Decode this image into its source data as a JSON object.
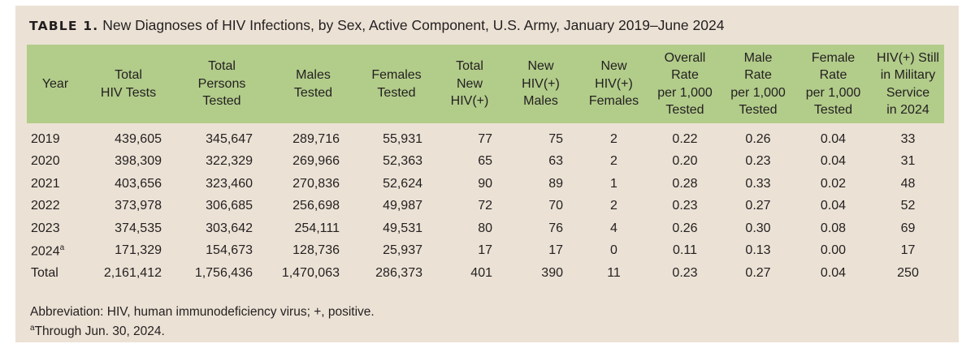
{
  "title": {
    "label": "TABLE 1.",
    "text": "New Diagnoses of HIV Infections, by Sex, Active Component, U.S. Army, January 2019–June 2024"
  },
  "columns": [
    [
      "Year"
    ],
    [
      "Total",
      "HIV Tests"
    ],
    [
      "Total",
      "Persons",
      "Tested"
    ],
    [
      "Males",
      "Tested"
    ],
    [
      "Females",
      "Tested"
    ],
    [
      "Total",
      "New",
      "HIV(+)"
    ],
    [
      "New",
      "HIV(+)",
      "Males"
    ],
    [
      "New",
      "HIV(+)",
      "Females"
    ],
    [
      "Overall",
      "Rate",
      "per 1,000",
      "Tested"
    ],
    [
      "Male",
      "Rate",
      "per 1,000",
      "Tested"
    ],
    [
      "Female",
      "Rate",
      "per 1,000",
      "Tested"
    ],
    [
      "HIV(+) Still",
      "in Military",
      "Service",
      "in 2024"
    ]
  ],
  "rows": [
    {
      "year": "2019",
      "sup": "",
      "cells": [
        "439,605",
        "345,647",
        "289,716",
        "55,931",
        "77",
        "75",
        "2",
        "0.22",
        "0.26",
        "0.04",
        "33"
      ]
    },
    {
      "year": "2020",
      "sup": "",
      "cells": [
        "398,309",
        "322,329",
        "269,966",
        "52,363",
        "65",
        "63",
        "2",
        "0.20",
        "0.23",
        "0.04",
        "31"
      ]
    },
    {
      "year": "2021",
      "sup": "",
      "cells": [
        "403,656",
        "323,460",
        "270,836",
        "52,624",
        "90",
        "89",
        "1",
        "0.28",
        "0.33",
        "0.02",
        "48"
      ]
    },
    {
      "year": "2022",
      "sup": "",
      "cells": [
        "373,978",
        "306,685",
        "256,698",
        "49,987",
        "72",
        "70",
        "2",
        "0.23",
        "0.27",
        "0.04",
        "52"
      ]
    },
    {
      "year": "2023",
      "sup": "",
      "cells": [
        "374,535",
        "303,642",
        "254,111",
        "49,531",
        "80",
        "76",
        "4",
        "0.26",
        "0.30",
        "0.08",
        "69"
      ]
    },
    {
      "year": "2024",
      "sup": "a",
      "cells": [
        "171,329",
        "154,673",
        "128,736",
        "25,937",
        "17",
        "17",
        "0",
        "0.11",
        "0.13",
        "0.00",
        "17"
      ]
    },
    {
      "year": "Total",
      "sup": "",
      "cells": [
        "2,161,412",
        "1,756,436",
        "1,470,063",
        "286,373",
        "401",
        "390",
        "11",
        "0.23",
        "0.27",
        "0.04",
        "250"
      ]
    }
  ],
  "footnotes": {
    "abbreviation": "Abbreviation: HIV, human immunodeficiency virus; +, positive.",
    "a_mark": "a",
    "a_text": "Through Jun. 30, 2024."
  },
  "colors": {
    "panel": "#ebe2d5",
    "header": "#b2cc8a"
  }
}
